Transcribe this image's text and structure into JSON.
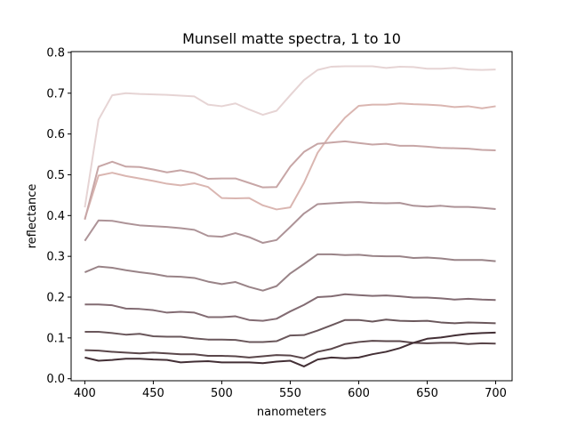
{
  "chart_data": {
    "type": "line",
    "title": "Munsell matte spectra, 1 to 10",
    "xlabel": "nanometers",
    "ylabel": "reflectance",
    "xlim": [
      390,
      712
    ],
    "ylim": [
      -0.005,
      0.802
    ],
    "xticks": [
      400,
      450,
      500,
      550,
      600,
      650,
      700
    ],
    "yticks": [
      0.0,
      0.1,
      0.2,
      0.3,
      0.4,
      0.5,
      0.6,
      0.7,
      0.8
    ],
    "xtick_labels": [
      "400",
      "450",
      "500",
      "550",
      "600",
      "650",
      "700"
    ],
    "ytick_labels": [
      "0.0",
      "0.1",
      "0.2",
      "0.3",
      "0.4",
      "0.5",
      "0.6",
      "0.7",
      "0.8"
    ],
    "grid": false,
    "x": [
      400,
      410,
      420,
      430,
      440,
      450,
      460,
      470,
      480,
      490,
      500,
      510,
      520,
      530,
      540,
      550,
      560,
      570,
      580,
      590,
      600,
      610,
      620,
      630,
      640,
      650,
      660,
      670,
      680,
      690,
      700
    ],
    "series": [
      {
        "color": "#e6d4d4",
        "values": [
          0.42,
          0.635,
          0.695,
          0.7,
          0.698,
          0.697,
          0.696,
          0.694,
          0.692,
          0.672,
          0.668,
          0.675,
          0.66,
          0.647,
          0.657,
          0.695,
          0.732,
          0.757,
          0.765,
          0.766,
          0.766,
          0.766,
          0.762,
          0.765,
          0.764,
          0.76,
          0.76,
          0.762,
          0.758,
          0.757,
          0.758
        ]
      },
      {
        "color": "#dab6b1",
        "values": [
          0.392,
          0.498,
          0.505,
          0.497,
          0.491,
          0.485,
          0.478,
          0.474,
          0.479,
          0.47,
          0.443,
          0.442,
          0.443,
          0.425,
          0.415,
          0.42,
          0.48,
          0.554,
          0.601,
          0.64,
          0.669,
          0.672,
          0.672,
          0.675,
          0.673,
          0.672,
          0.67,
          0.666,
          0.668,
          0.663,
          0.668
        ]
      },
      {
        "color": "#c7a6a6",
        "values": [
          0.39,
          0.52,
          0.532,
          0.52,
          0.519,
          0.513,
          0.506,
          0.511,
          0.504,
          0.49,
          0.491,
          0.491,
          0.48,
          0.469,
          0.47,
          0.52,
          0.556,
          0.576,
          0.579,
          0.582,
          0.578,
          0.574,
          0.576,
          0.571,
          0.571,
          0.569,
          0.566,
          0.565,
          0.564,
          0.561,
          0.56
        ]
      },
      {
        "color": "#ad9397",
        "values": [
          0.338,
          0.388,
          0.387,
          0.381,
          0.376,
          0.374,
          0.372,
          0.369,
          0.365,
          0.35,
          0.348,
          0.357,
          0.347,
          0.333,
          0.34,
          0.372,
          0.405,
          0.428,
          0.43,
          0.432,
          0.433,
          0.431,
          0.43,
          0.431,
          0.424,
          0.422,
          0.424,
          0.421,
          0.421,
          0.419,
          0.416
        ]
      },
      {
        "color": "#998387",
        "values": [
          0.261,
          0.275,
          0.272,
          0.266,
          0.261,
          0.257,
          0.251,
          0.25,
          0.247,
          0.238,
          0.232,
          0.237,
          0.225,
          0.216,
          0.227,
          0.258,
          0.281,
          0.305,
          0.305,
          0.303,
          0.304,
          0.301,
          0.3,
          0.3,
          0.296,
          0.297,
          0.295,
          0.291,
          0.291,
          0.291,
          0.288
        ]
      },
      {
        "color": "#826b72",
        "values": [
          0.182,
          0.182,
          0.18,
          0.172,
          0.171,
          0.168,
          0.162,
          0.164,
          0.162,
          0.151,
          0.151,
          0.153,
          0.144,
          0.142,
          0.147,
          0.165,
          0.181,
          0.2,
          0.202,
          0.207,
          0.205,
          0.203,
          0.204,
          0.202,
          0.199,
          0.199,
          0.197,
          0.194,
          0.196,
          0.194,
          0.193
        ]
      },
      {
        "color": "#6a575b",
        "values": [
          0.115,
          0.115,
          0.112,
          0.108,
          0.11,
          0.104,
          0.103,
          0.103,
          0.099,
          0.096,
          0.096,
          0.095,
          0.09,
          0.09,
          0.092,
          0.106,
          0.107,
          0.118,
          0.131,
          0.144,
          0.144,
          0.14,
          0.145,
          0.142,
          0.141,
          0.142,
          0.138,
          0.136,
          0.138,
          0.137,
          0.136
        ]
      },
      {
        "color": "#5a464a",
        "values": [
          0.07,
          0.069,
          0.066,
          0.064,
          0.062,
          0.064,
          0.062,
          0.06,
          0.06,
          0.056,
          0.056,
          0.055,
          0.052,
          0.055,
          0.058,
          0.057,
          0.05,
          0.066,
          0.073,
          0.085,
          0.09,
          0.093,
          0.092,
          0.092,
          0.088,
          0.087,
          0.088,
          0.088,
          0.085,
          0.087,
          0.086
        ]
      },
      {
        "color": "#432f35",
        "values": [
          0.052,
          0.044,
          0.046,
          0.049,
          0.049,
          0.047,
          0.046,
          0.04,
          0.042,
          0.043,
          0.04,
          0.04,
          0.04,
          0.038,
          0.042,
          0.044,
          0.03,
          0.047,
          0.052,
          0.05,
          0.052,
          0.06,
          0.066,
          0.075,
          0.088,
          0.098,
          0.101,
          0.106,
          0.11,
          0.112,
          0.113
        ]
      }
    ]
  }
}
